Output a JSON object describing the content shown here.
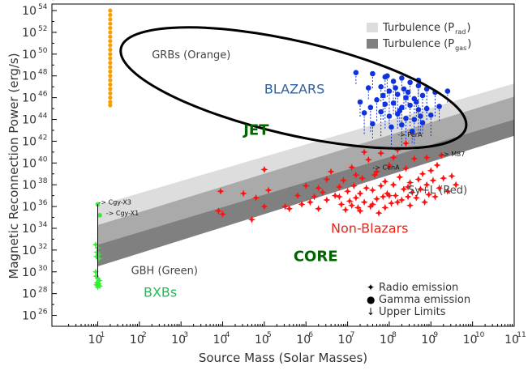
{
  "chart_data": {
    "type": "scatter",
    "xlabel": "Source Mass (Solar Masses)",
    "ylabel": "Magnetic Reconnection Power (erg/s)",
    "x_scale": "log",
    "y_scale": "log",
    "xlim_log10": [
      -0.1,
      11.0
    ],
    "ylim_log10": [
      25.0,
      54.6
    ],
    "x_ticks": [
      "10^1",
      "10^2",
      "10^3",
      "10^4",
      "10^5",
      "10^6",
      "10^7",
      "10^8",
      "10^9",
      "10^10",
      "10^11"
    ],
    "y_ticks": [
      "10^26",
      "10^28",
      "10^30",
      "10^32",
      "10^34",
      "10^36",
      "10^38",
      "10^40",
      "10^42",
      "10^44",
      "10^46",
      "10^48",
      "10^50",
      "10^52",
      "10^54"
    ],
    "grid": false,
    "legend_placement": "top-right",
    "legend": [
      {
        "label_main": "Turbulence (P",
        "label_sub": "rad",
        "label_end": ")",
        "color": "#dddddd"
      },
      {
        "label_main": "Turbulence (P",
        "label_sub": "gas",
        "label_end": ")",
        "color": "#808080"
      }
    ],
    "marker_legend": [
      {
        "symbol": "✦",
        "label": "Radio emission"
      },
      {
        "symbol": "●",
        "label": "Gamma emission"
      },
      {
        "symbol": "↓",
        "label": "Upper Limits"
      }
    ],
    "bands": [
      {
        "name": "Turbulence (P_rad)",
        "color": "#dddddd",
        "lower_log": [
          [
            1.0,
            34.3
          ],
          [
            11.0,
            46.1
          ]
        ],
        "upper_log": [
          [
            1.0,
            36.1
          ],
          [
            11.0,
            47.3
          ]
        ]
      },
      {
        "name": "Turbulence (P_gas)",
        "color": "#aaaaaa",
        "lower_log": [
          [
            1.0,
            32.5
          ],
          [
            11.0,
            44.0
          ]
        ],
        "upper_log": [
          [
            1.0,
            34.3
          ],
          [
            11.0,
            46.1
          ]
        ]
      },
      {
        "name": "Turbulence (P_gas) dark",
        "color": "#808080",
        "lower_log": [
          [
            1.0,
            30.5
          ],
          [
            11.0,
            42.5
          ]
        ],
        "upper_log": [
          [
            1.0,
            32.5
          ],
          [
            11.0,
            44.0
          ]
        ]
      }
    ],
    "region_labels": [
      {
        "text": "JET",
        "color": "#006400",
        "x_log": 4.5,
        "y_log": 42.6
      },
      {
        "text": "CORE",
        "color": "#006400",
        "x_log": 5.7,
        "y_log": 31.0
      },
      {
        "text": "GRBs (Orange)",
        "color": "#444444",
        "x_log": 2.3,
        "y_log": 49.6
      },
      {
        "text": "BLAZARS",
        "color": "#2e5f9e",
        "x_log": 5.0,
        "y_log": 46.4
      },
      {
        "text": "Non-Blazars",
        "color": "#e8231a",
        "x_log": 6.6,
        "y_log": 33.6
      },
      {
        "text": "Sy+L (Red)",
        "color": "#444444",
        "x_log": 8.45,
        "y_log": 37.2
      },
      {
        "text": "GBH (Green)",
        "color": "#444444",
        "x_log": 1.8,
        "y_log": 29.8
      },
      {
        "text": "BXBs",
        "color": "#22bb55",
        "x_log": 2.1,
        "y_log": 27.7
      }
    ],
    "source_labels": [
      {
        "text": "-> Cgy-X3",
        "x_log": 1.02,
        "y_log": 36.2
      },
      {
        "text": "-> Cgy-X1",
        "x_log": 1.2,
        "y_log": 35.2
      },
      {
        "text": "-> PerA",
        "x_log": 8.2,
        "y_log": 42.4
      },
      {
        "text": "-> CenA",
        "x_log": 7.6,
        "y_log": 39.4
      },
      {
        "text": "-> M87",
        "x_log": 9.25,
        "y_log": 40.6
      }
    ],
    "ellipse_log": {
      "cx": 5.7,
      "cy": 46.9,
      "rx": 4.25,
      "ry": 4.3
    },
    "series": [
      {
        "name": "GRBs (Orange)",
        "color": "#f5a000",
        "marker": "circle",
        "points_log": [
          [
            1.3,
            54.0
          ],
          [
            1.3,
            53.6
          ],
          [
            1.3,
            53.2
          ],
          [
            1.3,
            52.8
          ],
          [
            1.3,
            52.4
          ],
          [
            1.3,
            52.0
          ],
          [
            1.3,
            51.6
          ],
          [
            1.3,
            51.2
          ],
          [
            1.3,
            50.8
          ],
          [
            1.3,
            50.4
          ],
          [
            1.3,
            50.0
          ],
          [
            1.3,
            49.6
          ],
          [
            1.3,
            49.2
          ],
          [
            1.3,
            48.8
          ],
          [
            1.3,
            48.4
          ],
          [
            1.3,
            48.0
          ],
          [
            1.3,
            47.6
          ],
          [
            1.3,
            47.2
          ],
          [
            1.3,
            46.8
          ],
          [
            1.3,
            46.4
          ],
          [
            1.3,
            46.0
          ],
          [
            1.3,
            45.6
          ],
          [
            1.3,
            45.3
          ]
        ]
      },
      {
        "name": "BLAZARS (Gamma)",
        "color": "#1133dd",
        "marker": "circle",
        "points_log": [
          [
            7.2,
            48.3
          ],
          [
            7.6,
            48.2
          ],
          [
            7.9,
            47.9
          ],
          [
            8.1,
            47.5
          ],
          [
            8.3,
            47.8
          ],
          [
            8.5,
            47.4
          ],
          [
            8.7,
            47.1
          ],
          [
            8.9,
            46.8
          ],
          [
            7.5,
            46.9
          ],
          [
            7.8,
            47.0
          ],
          [
            8.0,
            46.6
          ],
          [
            8.2,
            46.3
          ],
          [
            8.4,
            46.0
          ],
          [
            8.6,
            45.9
          ],
          [
            8.8,
            46.2
          ],
          [
            9.1,
            46.5
          ],
          [
            9.4,
            46.6
          ],
          [
            7.3,
            45.6
          ],
          [
            7.7,
            45.8
          ],
          [
            7.9,
            45.4
          ],
          [
            8.1,
            45.5
          ],
          [
            8.3,
            45.1
          ],
          [
            8.5,
            45.3
          ],
          [
            8.7,
            44.9
          ],
          [
            8.9,
            45.0
          ],
          [
            9.2,
            45.2
          ],
          [
            7.4,
            44.6
          ],
          [
            7.8,
            44.7
          ],
          [
            8.0,
            44.3
          ],
          [
            8.2,
            44.5
          ],
          [
            8.4,
            44.1
          ],
          [
            8.6,
            44.0
          ],
          [
            8.8,
            43.7
          ],
          [
            7.6,
            43.6
          ],
          [
            8.05,
            43.3
          ],
          [
            8.3,
            43.5
          ],
          [
            8.55,
            42.9
          ],
          [
            8.7,
            47.6
          ],
          [
            7.95,
            48.0
          ],
          [
            8.15,
            46.9
          ],
          [
            8.45,
            46.5
          ],
          [
            8.65,
            45.6
          ],
          [
            9.0,
            44.4
          ],
          [
            7.55,
            45.1
          ],
          [
            8.25,
            44.8
          ],
          [
            8.75,
            44.3
          ],
          [
            8.35,
            46.8
          ],
          [
            7.85,
            46.2
          ]
        ]
      },
      {
        "name": "Non-Blazars / Sy+L (Radio)",
        "color": "#ff1111",
        "marker": "star",
        "points_log": [
          [
            3.9,
            35.6
          ],
          [
            3.95,
            37.4
          ],
          [
            4.0,
            35.3
          ],
          [
            4.5,
            37.2
          ],
          [
            4.7,
            34.8
          ],
          [
            4.8,
            36.8
          ],
          [
            5.0,
            39.4
          ],
          [
            5.0,
            36.0
          ],
          [
            5.1,
            37.5
          ],
          [
            5.5,
            36.0
          ],
          [
            5.6,
            35.8
          ],
          [
            5.8,
            37.0
          ],
          [
            5.9,
            36.2
          ],
          [
            6.0,
            37.9
          ],
          [
            6.1,
            36.4
          ],
          [
            6.2,
            36.9
          ],
          [
            6.3,
            35.8
          ],
          [
            6.4,
            37.3
          ],
          [
            6.5,
            36.6
          ],
          [
            6.6,
            39.2
          ],
          [
            6.7,
            37.0
          ],
          [
            6.8,
            37.8
          ],
          [
            6.85,
            36.2
          ],
          [
            6.9,
            38.4
          ],
          [
            6.95,
            35.7
          ],
          [
            7.0,
            37.4
          ],
          [
            7.05,
            36.5
          ],
          [
            7.1,
            39.6
          ],
          [
            7.15,
            37.9
          ],
          [
            7.2,
            36.8
          ],
          [
            7.25,
            35.9
          ],
          [
            7.3,
            37.2
          ],
          [
            7.35,
            38.6
          ],
          [
            7.4,
            36.4
          ],
          [
            7.45,
            37.7
          ],
          [
            7.5,
            40.3
          ],
          [
            7.55,
            36.0
          ],
          [
            7.6,
            37.5
          ],
          [
            7.65,
            38.9
          ],
          [
            7.7,
            36.7
          ],
          [
            7.75,
            35.4
          ],
          [
            7.8,
            37.9
          ],
          [
            7.85,
            36.9
          ],
          [
            7.9,
            38.3
          ],
          [
            7.95,
            37.2
          ],
          [
            8.0,
            39.8
          ],
          [
            8.05,
            36.3
          ],
          [
            8.1,
            38.0
          ],
          [
            8.15,
            37.0
          ],
          [
            8.2,
            41.2
          ],
          [
            8.25,
            38.7
          ],
          [
            8.3,
            36.6
          ],
          [
            8.35,
            37.6
          ],
          [
            8.4,
            39.5
          ],
          [
            8.45,
            36.9
          ],
          [
            8.5,
            38.2
          ],
          [
            8.55,
            37.3
          ],
          [
            8.6,
            40.4
          ],
          [
            8.65,
            36.8
          ],
          [
            8.7,
            38.5
          ],
          [
            8.75,
            37.6
          ],
          [
            8.8,
            39.0
          ],
          [
            8.85,
            36.4
          ],
          [
            8.9,
            38.0
          ],
          [
            8.95,
            37.1
          ],
          [
            9.0,
            39.3
          ],
          [
            9.05,
            38.4
          ],
          [
            9.1,
            36.9
          ],
          [
            9.15,
            39.8
          ],
          [
            9.2,
            37.7
          ],
          [
            9.3,
            38.6
          ],
          [
            9.4,
            37.4
          ],
          [
            9.5,
            38.8
          ],
          [
            9.6,
            38.0
          ],
          [
            7.1,
            36.1
          ],
          [
            7.3,
            35.6
          ],
          [
            7.6,
            36.2
          ],
          [
            7.9,
            35.9
          ],
          [
            8.2,
            36.4
          ],
          [
            8.5,
            36.1
          ],
          [
            8.1,
            40.5
          ],
          [
            7.8,
            40.9
          ],
          [
            7.4,
            41.0
          ],
          [
            8.4,
            41.8
          ],
          [
            6.5,
            38.5
          ],
          [
            6.3,
            37.7
          ],
          [
            6.8,
            36.9
          ],
          [
            7.2,
            38.9
          ],
          [
            8.9,
            40.5
          ],
          [
            9.25,
            40.7
          ],
          [
            7.7,
            39.2
          ],
          [
            8.45,
            37.8
          ],
          [
            8.0,
            37.0
          ]
        ]
      },
      {
        "name": "BXBs (Green)",
        "color": "#33ee33",
        "marker": "mixed",
        "points_log": [
          [
            1.0,
            36.2
          ],
          [
            1.05,
            35.2
          ],
          [
            0.95,
            32.5
          ],
          [
            1.0,
            32.2
          ],
          [
            0.98,
            31.8
          ],
          [
            1.02,
            31.6
          ],
          [
            0.97,
            31.4
          ],
          [
            1.03,
            31.2
          ],
          [
            0.96,
            29.6
          ],
          [
            1.0,
            29.4
          ],
          [
            1.04,
            29.2
          ],
          [
            0.98,
            29.0
          ],
          [
            1.02,
            28.9
          ],
          [
            0.97,
            28.8
          ],
          [
            1.05,
            28.7
          ],
          [
            1.0,
            28.6
          ],
          [
            0.95,
            30.0
          ]
        ]
      }
    ]
  }
}
